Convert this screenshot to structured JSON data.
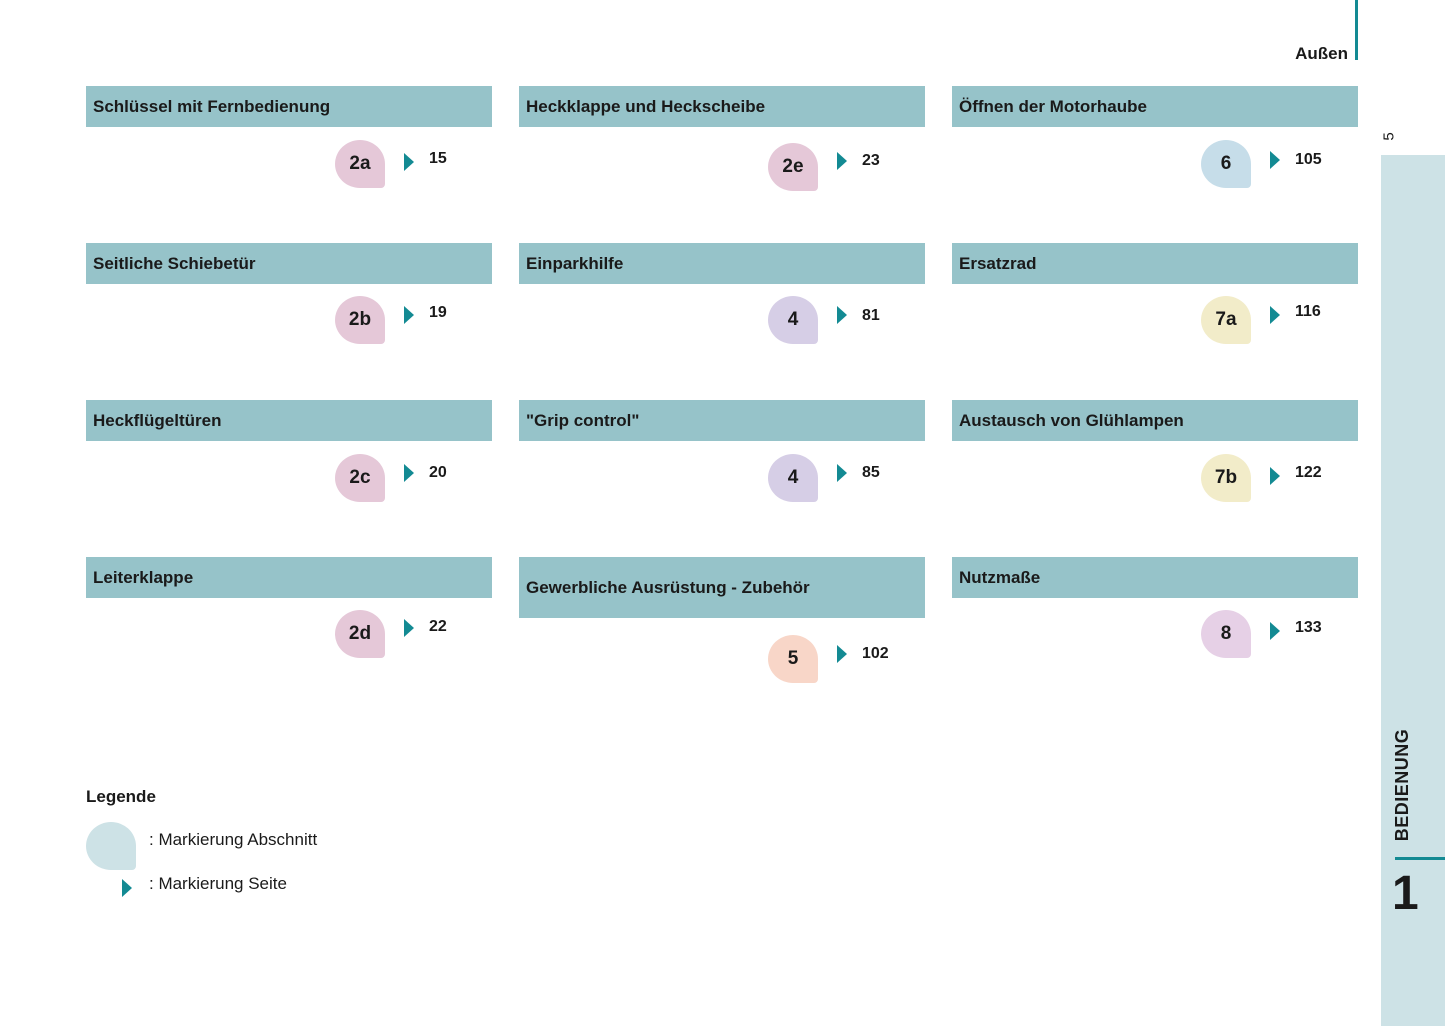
{
  "header": {
    "section": "Außen",
    "page_number": "5"
  },
  "side_tab": {
    "label": "BEDIENUNG",
    "number": "1"
  },
  "sections": [
    {
      "title": "Schlüssel mit Fernbedienung",
      "marker": "2a",
      "page": "15",
      "color": "#e5c8d8"
    },
    {
      "title": "Heckklappe und Heckscheibe",
      "marker": "2e",
      "page": "23",
      "color": "#e5c8d8"
    },
    {
      "title": "Öffnen der Motorhaube",
      "marker": "6",
      "page": "105",
      "color": "#c6dde9"
    },
    {
      "title": "Seitliche Schiebetür",
      "marker": "2b",
      "page": "19",
      "color": "#e5c8d8"
    },
    {
      "title": "Einparkhilfe",
      "marker": "4",
      "page": "81",
      "color": "#d6cee6"
    },
    {
      "title": "Ersatzrad",
      "marker": "7a",
      "page": "116",
      "color": "#f2ecc9"
    },
    {
      "title": "Heckflügeltüren",
      "marker": "2c",
      "page": "20",
      "color": "#e5c8d8"
    },
    {
      "title": "\"Grip control\"",
      "marker": "4",
      "page": "85",
      "color": "#d6cee6"
    },
    {
      "title": "Austausch von Glühlampen",
      "marker": "7b",
      "page": "122",
      "color": "#f2ecc9"
    },
    {
      "title": "Leiterklappe",
      "marker": "2d",
      "page": "22",
      "color": "#e5c8d8"
    },
    {
      "title": "Gewerbliche Ausrüstung - Zubehör",
      "marker": "5",
      "page": "102",
      "color": "#f8d6c8"
    },
    {
      "title": "Nutzmaße",
      "marker": "8",
      "page": "133",
      "color": "#e6d0e6"
    }
  ],
  "legend": {
    "title": "Legende",
    "marker_text": ": Markierung Abschnitt",
    "arrow_text": ": Markierung Seite"
  }
}
